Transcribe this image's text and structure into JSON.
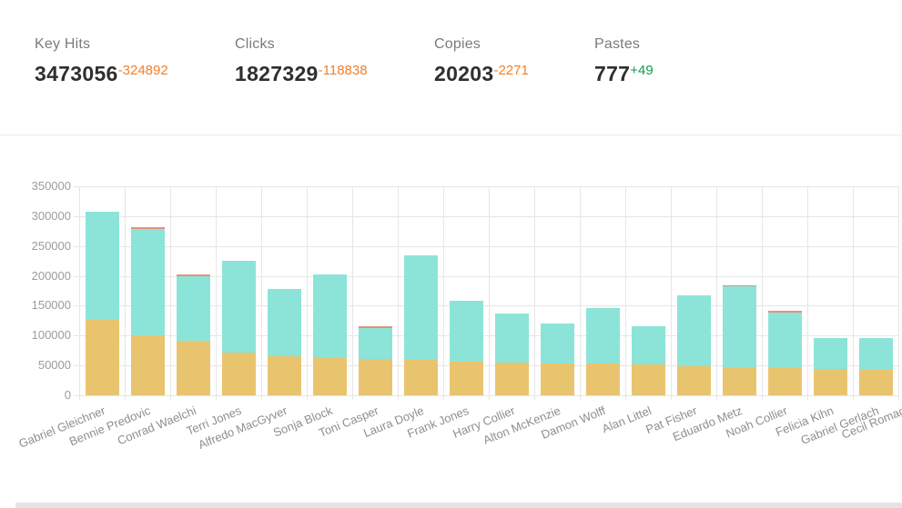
{
  "colors": {
    "negative_delta": "#f47f26",
    "positive_delta": "#0f9d4e",
    "series_yellow": "#e9c46f",
    "series_teal": "#8ce4d8",
    "series_salmon": "#e2937b",
    "grid": "#e6e6e6",
    "axis_text": "#9c9c9c"
  },
  "stats": [
    {
      "label": "Key Hits",
      "value": "3473056",
      "delta": "-324892",
      "direction": "down"
    },
    {
      "label": "Clicks",
      "value": "1827329",
      "delta": "-118838",
      "direction": "down"
    },
    {
      "label": "Copies",
      "value": "20203",
      "delta": "-2271",
      "direction": "down"
    },
    {
      "label": "Pastes",
      "value": "777",
      "delta": "+49",
      "direction": "up"
    }
  ],
  "chart_data": {
    "type": "bar",
    "stacked": true,
    "legend": "none",
    "grid": true,
    "ylim": [
      0,
      350000
    ],
    "ytick_step": 50000,
    "categories": [
      "Gabriel Gleichner",
      "Bennie Predovic",
      "Conrad Waelchi",
      "Terri Jones",
      "Alfredo MacGyver",
      "Sonja Block",
      "Toni Casper",
      "Laura Doyle",
      "Frank Jones",
      "Harry Collier",
      "Alton McKenzie",
      "Damon Wolff",
      "Alan Littel",
      "Pat Fisher",
      "Eduardo Metz",
      "Noah Collier",
      "Felicia Kihn",
      "Gabriel Gerlach"
    ],
    "overflow_label": "Cecil Romag",
    "series": [
      {
        "name": "yellow",
        "color": "#e9c46f",
        "values": [
          127000,
          101000,
          92000,
          72000,
          65000,
          62000,
          61000,
          60000,
          56000,
          55000,
          53000,
          53000,
          52000,
          49000,
          46000,
          45000,
          44000,
          43000
        ]
      },
      {
        "name": "teal",
        "color": "#8ce4d8",
        "values": [
          180000,
          178000,
          107000,
          154000,
          113000,
          141000,
          52000,
          175000,
          102000,
          82000,
          67000,
          93000,
          64000,
          119000,
          137000,
          94000,
          52000,
          53000
        ]
      },
      {
        "name": "salmon",
        "color": "#e2937b",
        "values": [
          0,
          2000,
          4000,
          0,
          0,
          0,
          3000,
          0,
          0,
          0,
          0,
          0,
          0,
          0,
          1000,
          3000,
          0,
          0
        ]
      }
    ]
  }
}
